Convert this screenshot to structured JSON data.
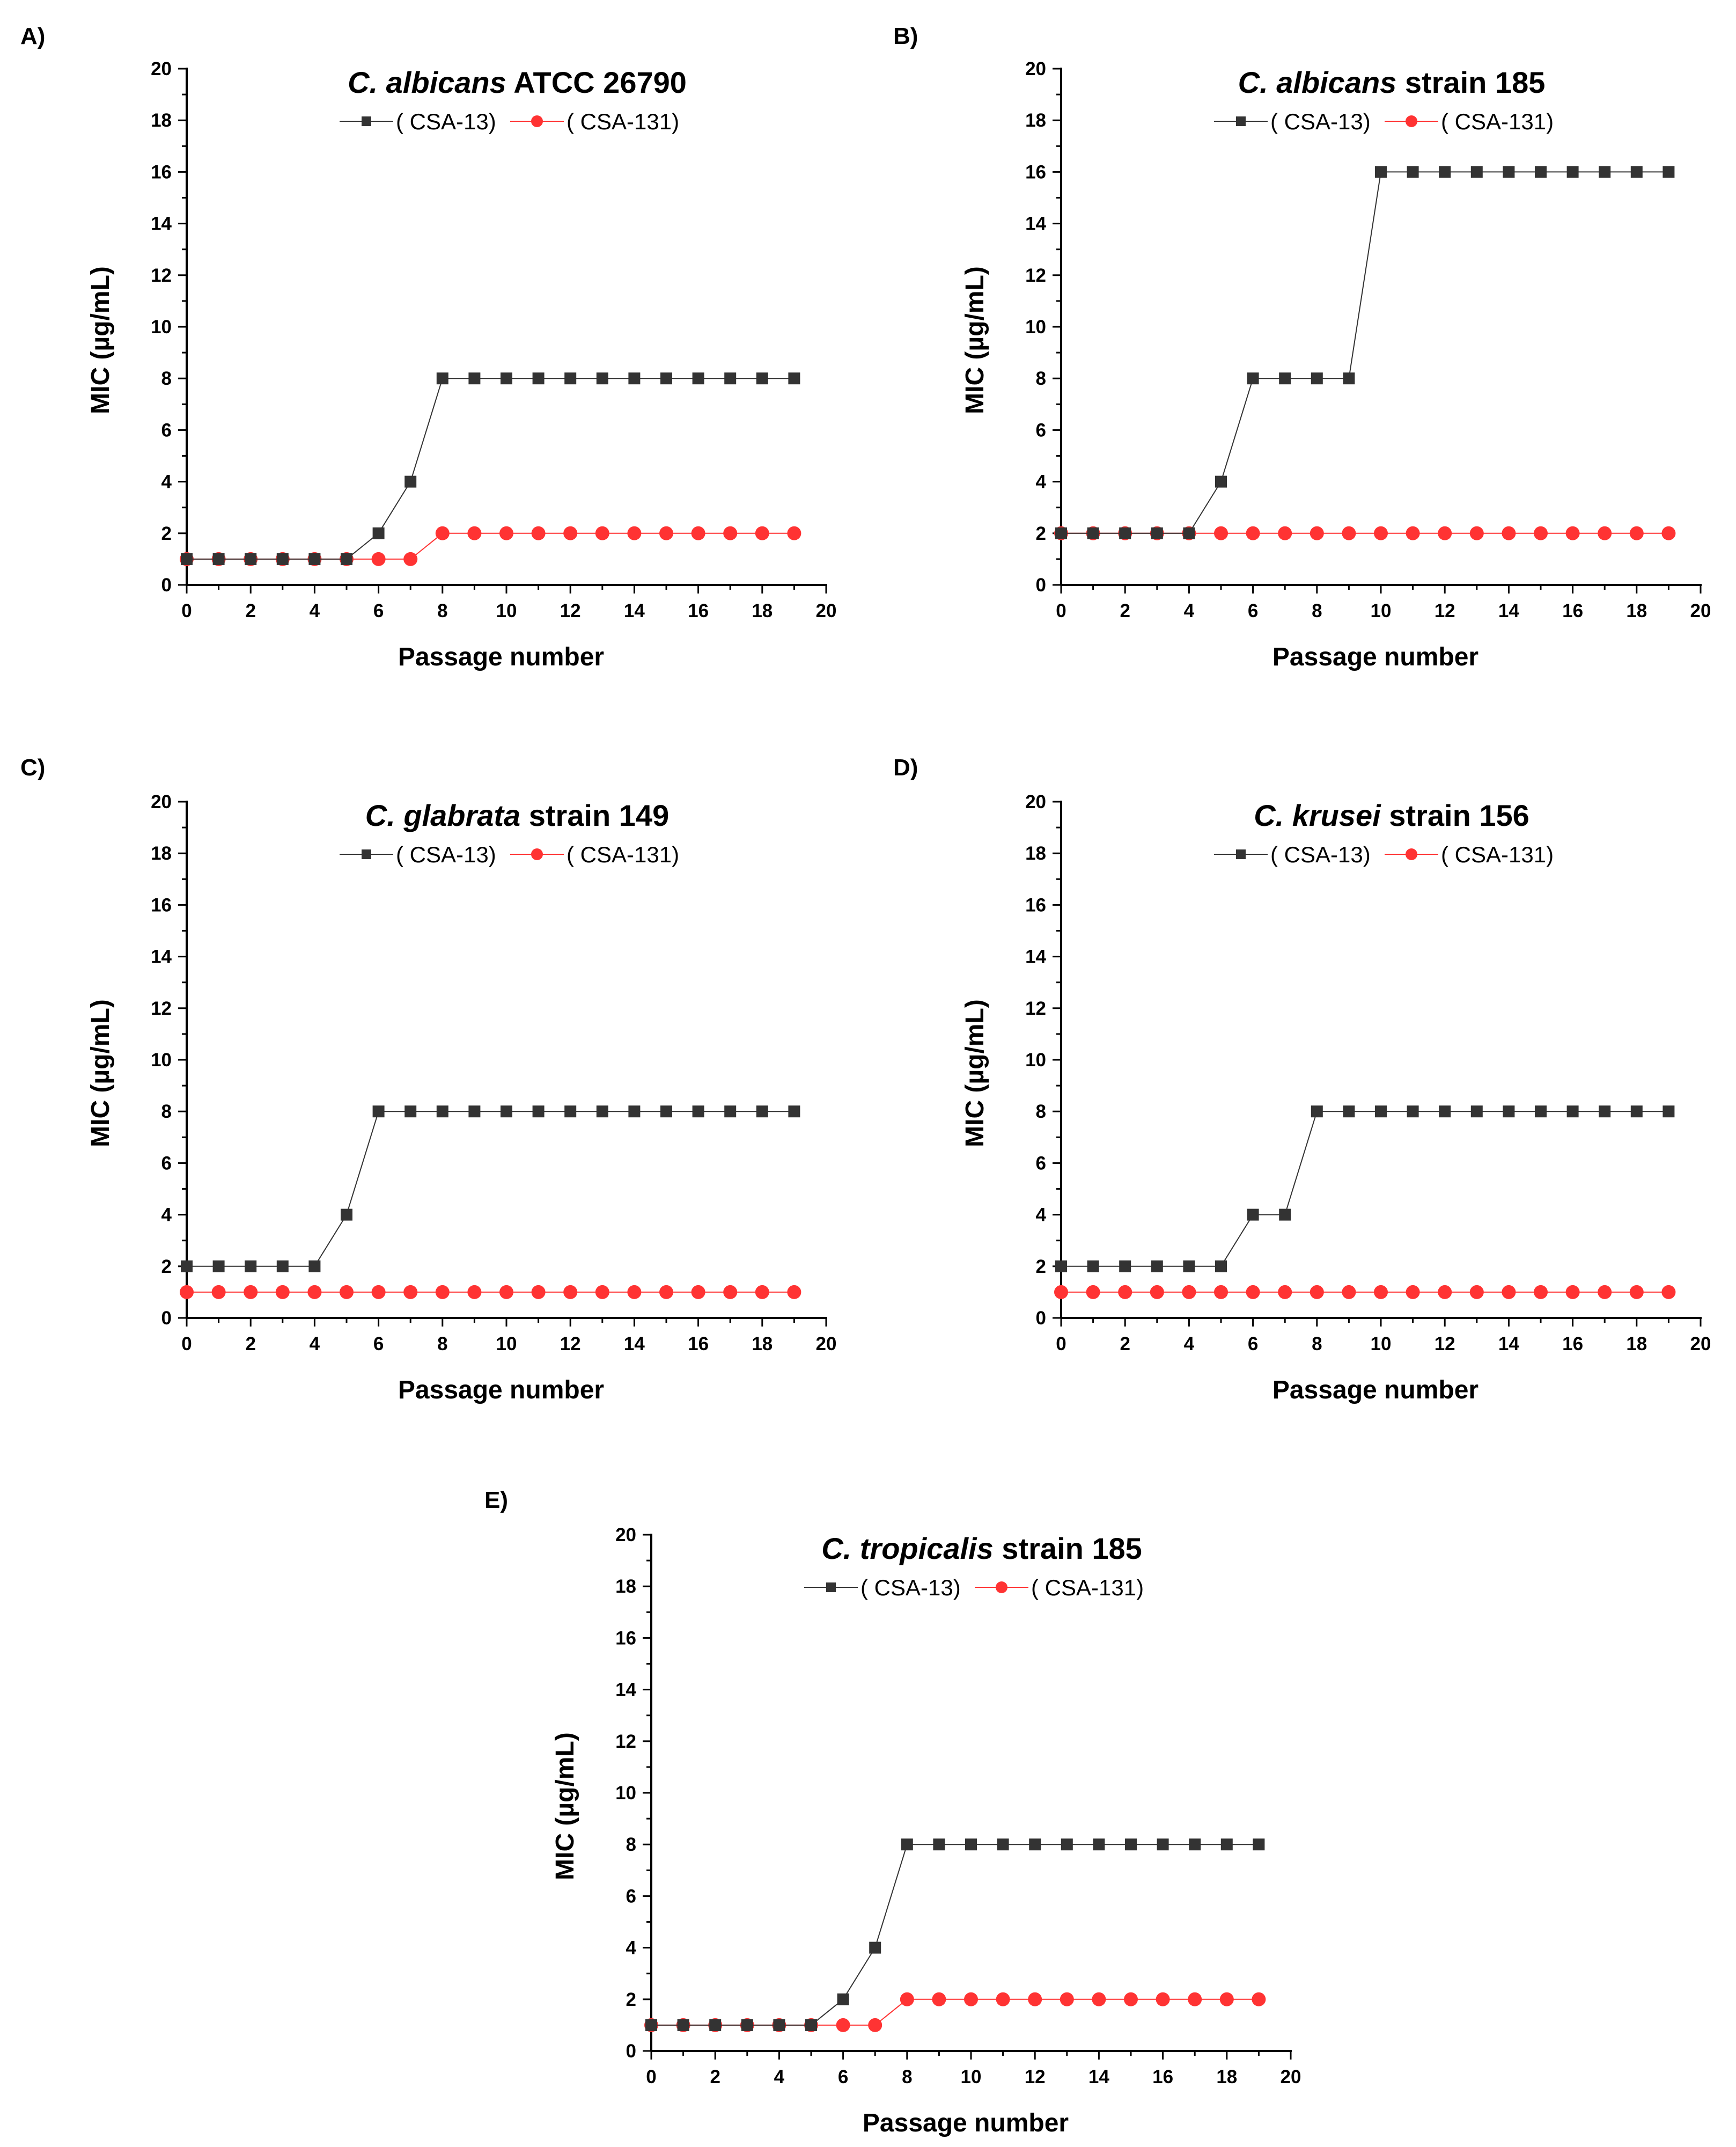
{
  "colors": {
    "series_1": "#333333",
    "series_2": "#ff3333",
    "axis": "#000000"
  },
  "chart_data": [
    {
      "panel": "A)",
      "type": "line",
      "title_italic": "C. albicans",
      "title_rest": " ATCC 26790",
      "xlabel": "Passage number",
      "ylabel": "MIC (µg/mL)",
      "xlim": [
        0,
        20
      ],
      "ylim": [
        0,
        20
      ],
      "xticks": [
        0,
        2,
        4,
        6,
        8,
        10,
        12,
        14,
        16,
        18,
        20
      ],
      "yticks": [
        0,
        2,
        4,
        6,
        8,
        10,
        12,
        14,
        16,
        18,
        20
      ],
      "x": [
        0,
        1,
        2,
        3,
        4,
        5,
        6,
        7,
        8,
        9,
        10,
        11,
        12,
        13,
        14,
        15,
        16,
        17,
        18,
        19
      ],
      "series": [
        {
          "name": "( CSA-13)",
          "marker": "square",
          "values": [
            1,
            1,
            1,
            1,
            1,
            1,
            2,
            4,
            8,
            8,
            8,
            8,
            8,
            8,
            8,
            8,
            8,
            8,
            8,
            8
          ]
        },
        {
          "name": "( CSA-131)",
          "marker": "circle",
          "values": [
            1,
            1,
            1,
            1,
            1,
            1,
            1,
            1,
            2,
            2,
            2,
            2,
            2,
            2,
            2,
            2,
            2,
            2,
            2,
            2
          ]
        }
      ]
    },
    {
      "panel": "B)",
      "type": "line",
      "title_italic": "C. albicans",
      "title_rest": " strain 185",
      "xlabel": "Passage number",
      "ylabel": "MIC (µg/mL)",
      "xlim": [
        0,
        20
      ],
      "ylim": [
        0,
        20
      ],
      "xticks": [
        0,
        2,
        4,
        6,
        8,
        10,
        12,
        14,
        16,
        18,
        20
      ],
      "yticks": [
        0,
        2,
        4,
        6,
        8,
        10,
        12,
        14,
        16,
        18,
        20
      ],
      "x": [
        0,
        1,
        2,
        3,
        4,
        5,
        6,
        7,
        8,
        9,
        10,
        11,
        12,
        13,
        14,
        15,
        16,
        17,
        18,
        19
      ],
      "series": [
        {
          "name": "( CSA-13)",
          "marker": "square",
          "values": [
            2,
            2,
            2,
            2,
            2,
            4,
            8,
            8,
            8,
            8,
            16,
            16,
            16,
            16,
            16,
            16,
            16,
            16,
            16,
            16
          ]
        },
        {
          "name": "( CSA-131)",
          "marker": "circle",
          "values": [
            2,
            2,
            2,
            2,
            2,
            2,
            2,
            2,
            2,
            2,
            2,
            2,
            2,
            2,
            2,
            2,
            2,
            2,
            2,
            2
          ]
        }
      ]
    },
    {
      "panel": "C)",
      "type": "line",
      "title_italic": "C. glabrata",
      "title_rest": " strain 149",
      "xlabel": "Passage number",
      "ylabel": "MIC (µg/mL)",
      "xlim": [
        0,
        20
      ],
      "ylim": [
        0,
        20
      ],
      "xticks": [
        0,
        2,
        4,
        6,
        8,
        10,
        12,
        14,
        16,
        18,
        20
      ],
      "yticks": [
        0,
        2,
        4,
        6,
        8,
        10,
        12,
        14,
        16,
        18,
        20
      ],
      "x": [
        0,
        1,
        2,
        3,
        4,
        5,
        6,
        7,
        8,
        9,
        10,
        11,
        12,
        13,
        14,
        15,
        16,
        17,
        18,
        19
      ],
      "series": [
        {
          "name": "( CSA-13)",
          "marker": "square",
          "values": [
            2,
            2,
            2,
            2,
            2,
            4,
            8,
            8,
            8,
            8,
            8,
            8,
            8,
            8,
            8,
            8,
            8,
            8,
            8,
            8
          ]
        },
        {
          "name": "( CSA-131)",
          "marker": "circle",
          "values": [
            1,
            1,
            1,
            1,
            1,
            1,
            1,
            1,
            1,
            1,
            1,
            1,
            1,
            1,
            1,
            1,
            1,
            1,
            1,
            1
          ]
        }
      ]
    },
    {
      "panel": "D)",
      "type": "line",
      "title_italic": "C. krusei",
      "title_rest": " strain 156",
      "xlabel": "Passage number",
      "ylabel": "MIC (µg/mL)",
      "xlim": [
        0,
        20
      ],
      "ylim": [
        0,
        20
      ],
      "xticks": [
        0,
        2,
        4,
        6,
        8,
        10,
        12,
        14,
        16,
        18,
        20
      ],
      "yticks": [
        0,
        2,
        4,
        6,
        8,
        10,
        12,
        14,
        16,
        18,
        20
      ],
      "x": [
        0,
        1,
        2,
        3,
        4,
        5,
        6,
        7,
        8,
        9,
        10,
        11,
        12,
        13,
        14,
        15,
        16,
        17,
        18,
        19
      ],
      "series": [
        {
          "name": "( CSA-13)",
          "marker": "square",
          "values": [
            2,
            2,
            2,
            2,
            2,
            2,
            4,
            4,
            8,
            8,
            8,
            8,
            8,
            8,
            8,
            8,
            8,
            8,
            8,
            8
          ]
        },
        {
          "name": "( CSA-131)",
          "marker": "circle",
          "values": [
            1,
            1,
            1,
            1,
            1,
            1,
            1,
            1,
            1,
            1,
            1,
            1,
            1,
            1,
            1,
            1,
            1,
            1,
            1,
            1
          ]
        }
      ]
    },
    {
      "panel": "E)",
      "type": "line",
      "title_italic": "C. tropicalis",
      "title_rest": " strain 185",
      "xlabel": "Passage number",
      "ylabel": "MIC (µg/mL)",
      "xlim": [
        0,
        20
      ],
      "ylim": [
        0,
        20
      ],
      "xticks": [
        0,
        2,
        4,
        6,
        8,
        10,
        12,
        14,
        16,
        18,
        20
      ],
      "yticks": [
        0,
        2,
        4,
        6,
        8,
        10,
        12,
        14,
        16,
        18,
        20
      ],
      "x": [
        0,
        1,
        2,
        3,
        4,
        5,
        6,
        7,
        8,
        9,
        10,
        11,
        12,
        13,
        14,
        15,
        16,
        17,
        18,
        19
      ],
      "series": [
        {
          "name": "( CSA-13)",
          "marker": "square",
          "values": [
            1,
            1,
            1,
            1,
            1,
            1,
            2,
            4,
            8,
            8,
            8,
            8,
            8,
            8,
            8,
            8,
            8,
            8,
            8,
            8
          ]
        },
        {
          "name": "( CSA-131)",
          "marker": "circle",
          "values": [
            1,
            1,
            1,
            1,
            1,
            1,
            1,
            1,
            2,
            2,
            2,
            2,
            2,
            2,
            2,
            2,
            2,
            2,
            2,
            2
          ]
        }
      ]
    }
  ]
}
